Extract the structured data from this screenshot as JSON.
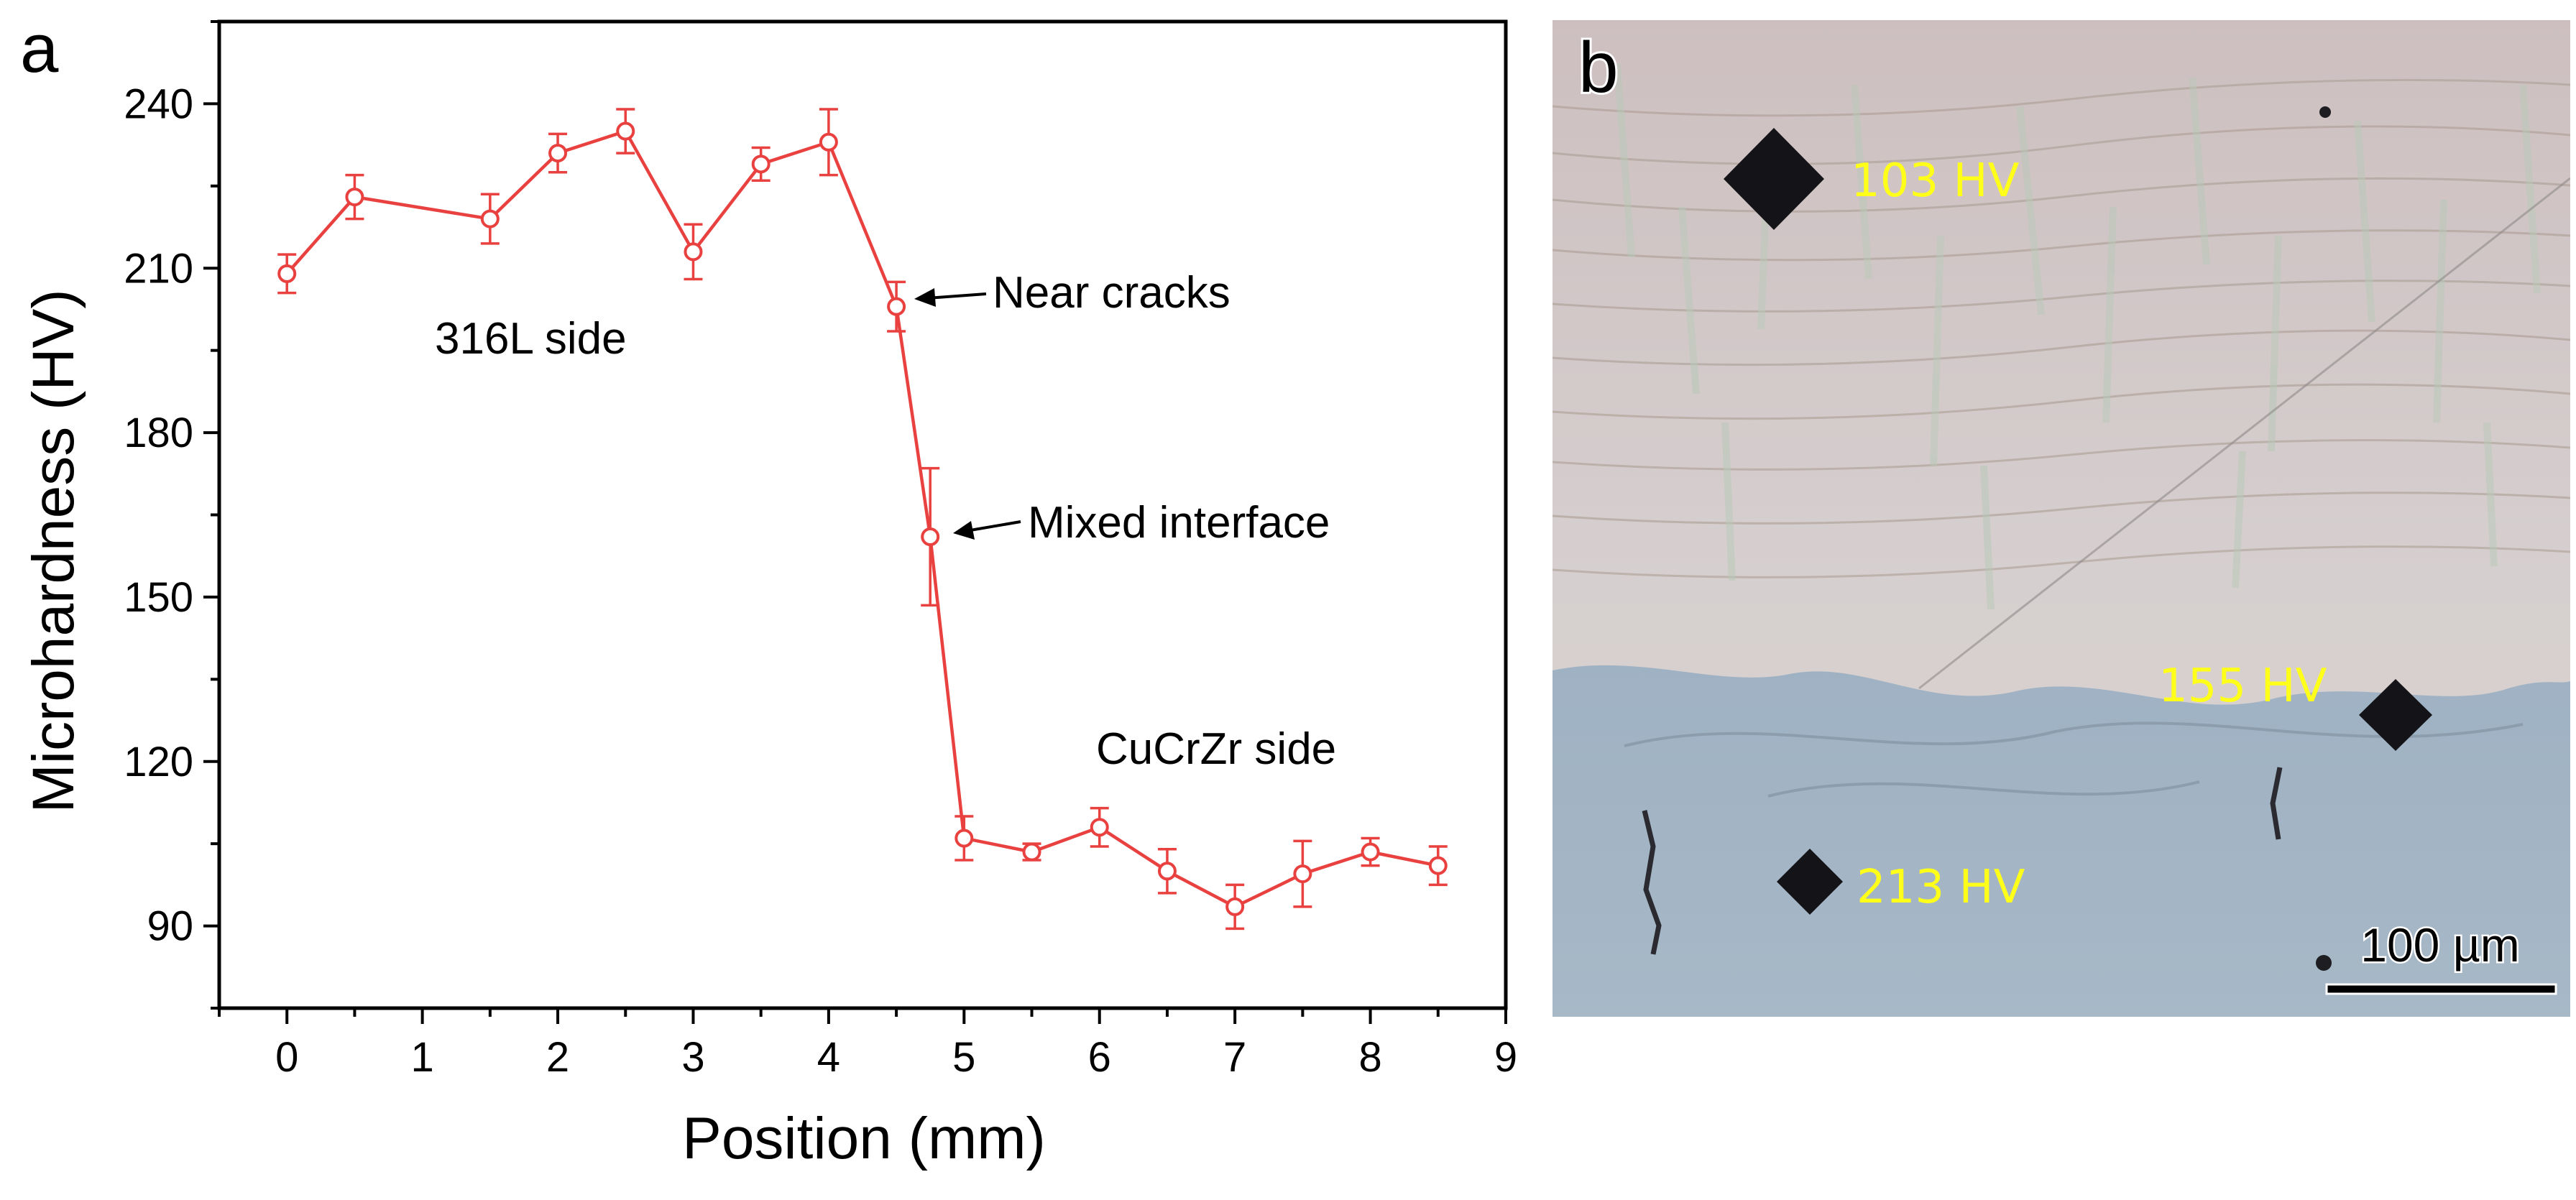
{
  "panel_a": {
    "label": "a",
    "annotations": {
      "near_cracks": "Near cracks",
      "mixed_interface": "Mixed interface",
      "side_316l": "316L side",
      "side_cucrzr": "CuCrZr side"
    }
  },
  "panel_b": {
    "label": "b",
    "indents": [
      "103 HV",
      "155 HV",
      "213 HV"
    ],
    "scale_bar_label": "100 µm"
  },
  "chart_data": {
    "type": "line",
    "title": "",
    "xlabel": "Position (mm)",
    "ylabel": "Microhardness (HV)",
    "xlim": [
      -0.5,
      9
    ],
    "ylim": [
      75,
      255
    ],
    "xticks": [
      0,
      1,
      2,
      3,
      4,
      5,
      6,
      7,
      8,
      9
    ],
    "yticks": [
      90,
      120,
      150,
      180,
      210,
      240
    ],
    "grid": false,
    "color": "#e8413f",
    "marker": "open-circle",
    "series": [
      {
        "x": [
          0,
          0.5,
          1.5,
          2,
          2.5,
          3,
          3.5,
          4,
          4.5,
          4.75,
          5,
          5.5,
          6,
          6.5,
          7,
          7.5,
          8,
          8.5
        ],
        "y": [
          209,
          223,
          219,
          231,
          235,
          213,
          229,
          233,
          203,
          161,
          106,
          103.5,
          108,
          100,
          93.5,
          99.5,
          103.5,
          101
        ],
        "err": [
          3.5,
          4,
          4.5,
          3.5,
          4,
          5,
          3,
          6,
          4.5,
          12.5,
          4,
          1.5,
          3.5,
          4,
          4,
          6,
          2.5,
          3.5
        ]
      }
    ]
  }
}
